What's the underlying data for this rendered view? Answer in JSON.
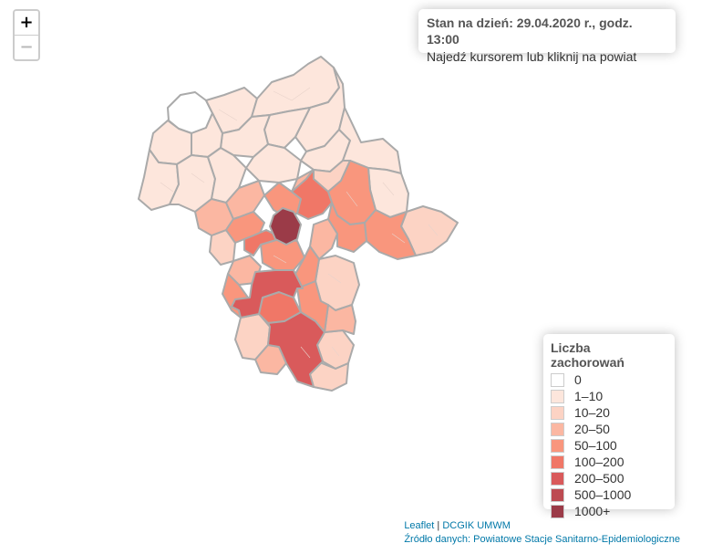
{
  "zoom": {
    "in_label": "+",
    "out_label": "−"
  },
  "info": {
    "status": "Stan na dzień: 29.04.2020 r., godz. 13:00",
    "hint": "Najedź kursorem lub kliknij na powiat"
  },
  "legend": {
    "title": "Liczba zachorowań",
    "items": [
      {
        "label": "0",
        "color": "#ffffff"
      },
      {
        "label": "1–10",
        "color": "#fde6dc"
      },
      {
        "label": "10–20",
        "color": "#fcd3c4"
      },
      {
        "label": "20–50",
        "color": "#fbb7a2"
      },
      {
        "label": "50–100",
        "color": "#f9967d"
      },
      {
        "label": "100–200",
        "color": "#f07767"
      },
      {
        "label": "200–500",
        "color": "#d95a5b"
      },
      {
        "label": "500–1000",
        "color": "#bd4b52"
      },
      {
        "label": "1000+",
        "color": "#9b3b48"
      }
    ]
  },
  "attribution": {
    "leaflet": "Leaflet",
    "sep": " | ",
    "provider": "DCGIK UMWM",
    "source_prefix": "Źródło danych: ",
    "source": "Powiatowe Stacje Sanitarno-Epidemiologiczne"
  },
  "map": {
    "region_border_color": "#aaaaaa",
    "district_border_color": "#d6c3bb"
  }
}
